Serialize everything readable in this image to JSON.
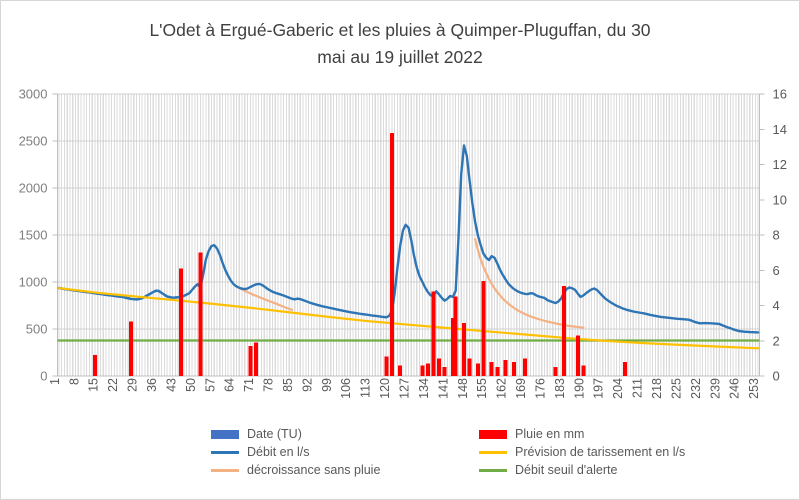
{
  "title": {
    "line1": "L'Odet à Ergué-Gaberic et les pluies à Quimper-Pluguffan, du 30",
    "line2": "mai au   19 juillet 2022"
  },
  "legend": {
    "items": [
      {
        "label": "Date (TU)",
        "marker": "box",
        "color": "#4472C4"
      },
      {
        "label": "Pluie en mm",
        "marker": "box",
        "color": "#FF0000"
      },
      {
        "label": "Débit en l/s",
        "marker": "line",
        "color": "#2E75B6"
      },
      {
        "label": "Prévision de tarissement en l/s",
        "marker": "line",
        "color": "#FFC000"
      },
      {
        "label": "décroissance sans pluie",
        "marker": "line",
        "color": "#F4B183"
      },
      {
        "label": "Débit seuil d'alerte",
        "marker": "line",
        "color": "#70AD47"
      }
    ]
  },
  "chart_data": {
    "type": "line+bar combo",
    "x_count": 253,
    "x_tick_labels": [
      1,
      8,
      15,
      22,
      29,
      36,
      43,
      50,
      57,
      64,
      71,
      78,
      85,
      92,
      99,
      106,
      113,
      120,
      127,
      134,
      141,
      148,
      155,
      162,
      169,
      176,
      183,
      190,
      197,
      204,
      211,
      218,
      225,
      232,
      239,
      246,
      253
    ],
    "left_axis": {
      "min": 0,
      "max": 3000,
      "ticks": [
        0,
        500,
        1000,
        1500,
        2000,
        2500,
        3000
      ],
      "color": "#7F7F7F"
    },
    "right_axis": {
      "min": 0,
      "max": 16,
      "ticks": [
        0,
        2,
        4,
        6,
        8,
        10,
        12,
        14,
        16
      ],
      "color": "#595959"
    },
    "grid": {
      "vertical_stripes": true,
      "stripe_color": "#DBDBDB",
      "hgrid_color": "#D0D0D0",
      "frame_color": "#BFBFBF"
    },
    "series": {
      "rain": {
        "name": "Pluie en mm",
        "type": "bar",
        "axis": "right",
        "color": "#FF0000",
        "points": [
          [
            14,
            1.2
          ],
          [
            27,
            3.1
          ],
          [
            45,
            6.1
          ],
          [
            52,
            7.0
          ],
          [
            70,
            1.7
          ],
          [
            72,
            1.9
          ],
          [
            119,
            1.1
          ],
          [
            121,
            13.8
          ],
          [
            124,
            0.6
          ],
          [
            132,
            0.6
          ],
          [
            134,
            0.7
          ],
          [
            136,
            4.8
          ],
          [
            138,
            1.0
          ],
          [
            140,
            0.5
          ],
          [
            143,
            3.3
          ],
          [
            144,
            4.5
          ],
          [
            147,
            3.0
          ],
          [
            149,
            1.0
          ],
          [
            152,
            0.7
          ],
          [
            154,
            5.4
          ],
          [
            157,
            0.8
          ],
          [
            159,
            0.5
          ],
          [
            162,
            0.9
          ],
          [
            165,
            0.8
          ],
          [
            169,
            1.0
          ],
          [
            180,
            0.5
          ],
          [
            183,
            5.1
          ],
          [
            188,
            2.3
          ],
          [
            190,
            0.6
          ],
          [
            205,
            0.8
          ]
        ]
      },
      "debit": {
        "name": "Débit en l/s",
        "type": "line",
        "axis": "left",
        "color": "#2E75B6",
        "dashed_until": 45,
        "points": [
          [
            1,
            935
          ],
          [
            4,
            921
          ],
          [
            8,
            905
          ],
          [
            12,
            889
          ],
          [
            16,
            871
          ],
          [
            20,
            855
          ],
          [
            24,
            840
          ],
          [
            27,
            820
          ],
          [
            29,
            815
          ],
          [
            31,
            827
          ],
          [
            33,
            860
          ],
          [
            35,
            893
          ],
          [
            36,
            907
          ],
          [
            37,
            904
          ],
          [
            38,
            884
          ],
          [
            40,
            846
          ],
          [
            42,
            833
          ],
          [
            44,
            837
          ],
          [
            46,
            851
          ],
          [
            48,
            881
          ],
          [
            49,
            916
          ],
          [
            50,
            950
          ],
          [
            51,
            977
          ],
          [
            52,
            941
          ],
          [
            53,
            1080
          ],
          [
            54,
            1240
          ],
          [
            55,
            1330
          ],
          [
            56,
            1383
          ],
          [
            57,
            1391
          ],
          [
            58,
            1356
          ],
          [
            59,
            1291
          ],
          [
            60,
            1203
          ],
          [
            61,
            1126
          ],
          [
            62,
            1066
          ],
          [
            63,
            1014
          ],
          [
            64,
            976
          ],
          [
            65,
            953
          ],
          [
            66,
            939
          ],
          [
            67,
            929
          ],
          [
            68,
            925
          ],
          [
            69,
            931
          ],
          [
            70,
            947
          ],
          [
            71,
            961
          ],
          [
            72,
            974
          ],
          [
            73,
            980
          ],
          [
            74,
            972
          ],
          [
            75,
            953
          ],
          [
            76,
            931
          ],
          [
            77,
            913
          ],
          [
            78,
            897
          ],
          [
            80,
            876
          ],
          [
            82,
            856
          ],
          [
            84,
            833
          ],
          [
            85,
            821
          ],
          [
            86,
            816
          ],
          [
            87,
            822
          ],
          [
            88,
            818
          ],
          [
            90,
            797
          ],
          [
            92,
            774
          ],
          [
            94,
            757
          ],
          [
            96,
            742
          ],
          [
            98,
            729
          ],
          [
            100,
            716
          ],
          [
            102,
            703
          ],
          [
            104,
            690
          ],
          [
            106,
            679
          ],
          [
            108,
            669
          ],
          [
            110,
            660
          ],
          [
            112,
            652
          ],
          [
            114,
            644
          ],
          [
            116,
            636
          ],
          [
            118,
            628
          ],
          [
            119,
            625
          ],
          [
            120,
            639
          ],
          [
            121,
            688
          ],
          [
            122,
            878
          ],
          [
            123,
            1148
          ],
          [
            124,
            1388
          ],
          [
            125,
            1549
          ],
          [
            126,
            1608
          ],
          [
            127,
            1579
          ],
          [
            128,
            1441
          ],
          [
            129,
            1282
          ],
          [
            130,
            1152
          ],
          [
            131,
            1061
          ],
          [
            132,
            1000
          ],
          [
            133,
            941
          ],
          [
            134,
            893
          ],
          [
            135,
            857
          ],
          [
            136,
            861
          ],
          [
            137,
            901
          ],
          [
            138,
            869
          ],
          [
            139,
            831
          ],
          [
            140,
            801
          ],
          [
            141,
            821
          ],
          [
            142,
            851
          ],
          [
            143,
            843
          ],
          [
            144,
            906
          ],
          [
            145,
            1452
          ],
          [
            146,
            2148
          ],
          [
            147,
            2452
          ],
          [
            148,
            2341
          ],
          [
            149,
            2089
          ],
          [
            150,
            1841
          ],
          [
            151,
            1642
          ],
          [
            152,
            1496
          ],
          [
            153,
            1396
          ],
          [
            154,
            1302
          ],
          [
            155,
            1259
          ],
          [
            156,
            1233
          ],
          [
            157,
            1276
          ],
          [
            158,
            1257
          ],
          [
            159,
            1197
          ],
          [
            160,
            1129
          ],
          [
            161,
            1076
          ],
          [
            162,
            1027
          ],
          [
            163,
            981
          ],
          [
            164,
            951
          ],
          [
            165,
            926
          ],
          [
            166,
            906
          ],
          [
            167,
            891
          ],
          [
            168,
            881
          ],
          [
            169,
            873
          ],
          [
            170,
            871
          ],
          [
            171,
            881
          ],
          [
            172,
            877
          ],
          [
            173,
            859
          ],
          [
            174,
            846
          ],
          [
            176,
            831
          ],
          [
            177,
            809
          ],
          [
            178,
            796
          ],
          [
            179,
            786
          ],
          [
            180,
            776
          ],
          [
            181,
            793
          ],
          [
            182,
            823
          ],
          [
            183,
            881
          ],
          [
            184,
            927
          ],
          [
            185,
            941
          ],
          [
            186,
            933
          ],
          [
            187,
            917
          ],
          [
            188,
            877
          ],
          [
            189,
            841
          ],
          [
            190,
            857
          ],
          [
            191,
            881
          ],
          [
            192,
            903
          ],
          [
            193,
            921
          ],
          [
            194,
            931
          ],
          [
            195,
            913
          ],
          [
            196,
            881
          ],
          [
            197,
            851
          ],
          [
            198,
            821
          ],
          [
            199,
            801
          ],
          [
            200,
            781
          ],
          [
            202,
            747
          ],
          [
            204,
            721
          ],
          [
            206,
            701
          ],
          [
            208,
            686
          ],
          [
            210,
            676
          ],
          [
            212,
            666
          ],
          [
            214,
            651
          ],
          [
            216,
            639
          ],
          [
            218,
            629
          ],
          [
            220,
            621
          ],
          [
            222,
            615
          ],
          [
            224,
            609
          ],
          [
            226,
            604
          ],
          [
            228,
            599
          ],
          [
            229,
            589
          ],
          [
            230,
            577
          ],
          [
            232,
            561
          ],
          [
            234,
            563
          ],
          [
            236,
            561
          ],
          [
            238,
            556
          ],
          [
            239,
            553
          ],
          [
            240,
            541
          ],
          [
            242,
            517
          ],
          [
            243,
            509
          ],
          [
            244,
            497
          ],
          [
            245,
            487
          ],
          [
            246,
            479
          ],
          [
            248,
            471
          ],
          [
            250,
            467
          ],
          [
            253,
            464
          ]
        ]
      },
      "prevision": {
        "name": "Prévision de tarissement en l/s",
        "type": "line",
        "axis": "left",
        "color": "#FFC000",
        "points": [
          [
            1,
            935
          ],
          [
            15,
            885
          ],
          [
            29,
            845
          ],
          [
            43,
            806
          ],
          [
            57,
            766
          ],
          [
            71,
            722
          ],
          [
            85,
            674
          ],
          [
            99,
            627
          ],
          [
            113,
            582
          ],
          [
            127,
            546
          ],
          [
            141,
            511
          ],
          [
            155,
            476
          ],
          [
            169,
            441
          ],
          [
            183,
            406
          ],
          [
            197,
            376
          ],
          [
            211,
            351
          ],
          [
            225,
            331
          ],
          [
            239,
            313
          ],
          [
            253,
            295
          ]
        ]
      },
      "decroissance": {
        "name": "décroissance sans pluie",
        "type": "line",
        "axis": "left",
        "color": "#F4B183",
        "segments": [
          [
            [
              65,
              950
            ],
            [
              67,
              921
            ],
            [
              69,
              893
            ],
            [
              71,
              865
            ],
            [
              73,
              841
            ],
            [
              75,
              817
            ],
            [
              77,
              795
            ],
            [
              79,
              773
            ],
            [
              81,
              749
            ],
            [
              83,
              725
            ],
            [
              85,
              703
            ]
          ],
          [
            [
              151,
              1455
            ],
            [
              152,
              1340
            ],
            [
              153,
              1245
            ],
            [
              154,
              1163
            ],
            [
              155,
              1095
            ],
            [
              156,
              1032
            ],
            [
              157,
              980
            ],
            [
              158,
              933
            ],
            [
              159,
              892
            ],
            [
              161,
              822
            ],
            [
              163,
              768
            ],
            [
              165,
              724
            ],
            [
              167,
              688
            ],
            [
              169,
              658
            ],
            [
              171,
              634
            ],
            [
              173,
              614
            ],
            [
              175,
              596
            ],
            [
              177,
              580
            ],
            [
              179,
              566
            ],
            [
              181,
              553
            ],
            [
              183,
              542
            ],
            [
              185,
              532
            ],
            [
              187,
              524
            ],
            [
              189,
              518
            ],
            [
              190,
              515
            ]
          ]
        ]
      },
      "seuil": {
        "name": "Débit seuil d'alerte",
        "type": "threshold-line",
        "axis": "left",
        "color": "#70AD47",
        "value": 378
      }
    }
  }
}
